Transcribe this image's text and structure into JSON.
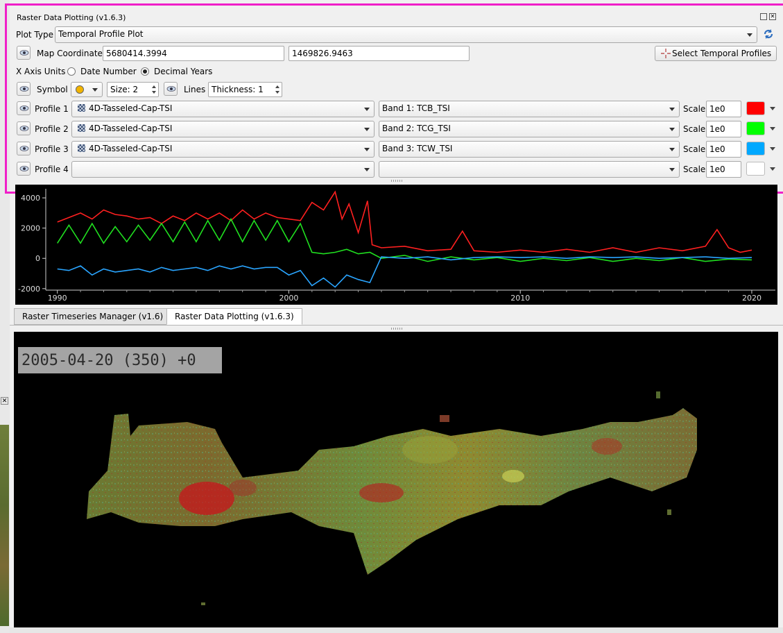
{
  "window": {
    "title": "Raster Data Plotting (v1.6.3)"
  },
  "plot_type": {
    "label": "Plot Type",
    "value": "Temporal Profile Plot"
  },
  "map_coordinate": {
    "label": "Map Coordinate",
    "x": "5680414.3994",
    "y": "1469826.9463",
    "select_button": "Select Temporal Profiles"
  },
  "x_axis_units": {
    "label": "X Axis Units",
    "options": [
      "Date Number",
      "Decimal Years"
    ],
    "selected": "Decimal Years"
  },
  "symbol": {
    "label": "Symbol",
    "size": "Size: 2",
    "lines_label": "Lines",
    "thickness": "Thickness: 1",
    "color": "#f2b400"
  },
  "profiles": [
    {
      "label": "Profile 1",
      "layer": "4D-Tasseled-Cap-TSI",
      "band": "Band 1: TCB_TSI",
      "scale_label": "Scale",
      "scale": "1e0",
      "color": "#ff0000"
    },
    {
      "label": "Profile 2",
      "layer": "4D-Tasseled-Cap-TSI",
      "band": "Band 2: TCG_TSI",
      "scale_label": "Scale",
      "scale": "1e0",
      "color": "#00ff00"
    },
    {
      "label": "Profile 3",
      "layer": "4D-Tasseled-Cap-TSI",
      "band": "Band 3: TCW_TSI",
      "scale_label": "Scale",
      "scale": "1e0",
      "color": "#00a8ff"
    },
    {
      "label": "Profile 4",
      "layer": "",
      "band": "",
      "scale_label": "Scale",
      "scale": "1e0",
      "color": "#ffffff"
    }
  ],
  "chart_data": {
    "type": "line",
    "title": "",
    "xlabel": "",
    "ylabel": "",
    "xlim": [
      1989.5,
      2020.9
    ],
    "ylim": [
      -2100,
      4600
    ],
    "x_ticks": [
      "1990",
      "2000",
      "2010",
      "2020"
    ],
    "y_ticks": [
      "4000",
      "2000",
      "0",
      "-2000"
    ],
    "grid": false,
    "background": "#000000",
    "series": [
      {
        "color": "#ff2020",
        "x": [
          1990,
          1990.5,
          1991,
          1991.5,
          1992,
          1992.5,
          1993,
          1993.5,
          1994,
          1994.5,
          1995,
          1995.5,
          1996,
          1996.5,
          1997,
          1997.5,
          1998,
          1998.5,
          1999,
          1999.5,
          2000,
          2000.5,
          2001,
          2001.5,
          2002,
          2002.3,
          2002.6,
          2003,
          2003.4,
          2003.6,
          2004,
          2005,
          2006,
          2007,
          2007.5,
          2008,
          2009,
          2010,
          2011,
          2012,
          2013,
          2014,
          2015,
          2016,
          2017,
          2018,
          2018.5,
          2019,
          2019.5,
          2020
        ],
        "y": [
          2400,
          2700,
          3000,
          2600,
          3200,
          2900,
          2800,
          2600,
          2700,
          2300,
          2800,
          2500,
          3000,
          2600,
          3000,
          2500,
          3200,
          2600,
          3000,
          2700,
          2600,
          2500,
          3700,
          3200,
          4400,
          2600,
          3600,
          1700,
          3800,
          900,
          700,
          800,
          500,
          600,
          1800,
          500,
          400,
          550,
          400,
          600,
          400,
          700,
          400,
          700,
          500,
          800,
          1900,
          700,
          400,
          550
        ]
      },
      {
        "color": "#20e020",
        "x": [
          1990,
          1990.5,
          1991,
          1991.5,
          1992,
          1992.5,
          1993,
          1993.5,
          1994,
          1994.5,
          1995,
          1995.5,
          1996,
          1996.5,
          1997,
          1997.5,
          1998,
          1998.5,
          1999,
          1999.5,
          2000,
          2000.5,
          2001,
          2001.5,
          2002,
          2002.5,
          2003,
          2003.5,
          2004,
          2005,
          2006,
          2007,
          2008,
          2009,
          2010,
          2011,
          2012,
          2013,
          2014,
          2015,
          2016,
          2017,
          2018,
          2019,
          2020
        ],
        "y": [
          1000,
          2200,
          1000,
          2300,
          1000,
          2100,
          1100,
          2200,
          1200,
          2300,
          1100,
          2400,
          1100,
          2500,
          1200,
          2600,
          1100,
          2500,
          1200,
          2500,
          1100,
          2300,
          400,
          300,
          400,
          600,
          300,
          400,
          0,
          200,
          -200,
          100,
          -100,
          50,
          -200,
          0,
          -150,
          50,
          -200,
          0,
          -150,
          50,
          -200,
          -50,
          -100
        ]
      },
      {
        "color": "#2aa5ff",
        "x": [
          1990,
          1990.5,
          1991,
          1991.5,
          1992,
          1992.5,
          1993,
          1993.5,
          1994,
          1994.5,
          1995,
          1995.5,
          1996,
          1996.5,
          1997,
          1997.5,
          1998,
          1998.5,
          1999,
          1999.5,
          2000,
          2000.5,
          2001,
          2001.5,
          2002,
          2002.5,
          2003,
          2003.5,
          2004,
          2005,
          2006,
          2007,
          2008,
          2009,
          2010,
          2011,
          2012,
          2013,
          2014,
          2015,
          2016,
          2017,
          2018,
          2019,
          2020
        ],
        "y": [
          -700,
          -800,
          -500,
          -1100,
          -700,
          -900,
          -800,
          -700,
          -900,
          -600,
          -800,
          -700,
          -600,
          -800,
          -500,
          -700,
          -500,
          -700,
          -600,
          -600,
          -1100,
          -800,
          -1800,
          -1300,
          -1900,
          -1100,
          -1400,
          -1600,
          100,
          0,
          100,
          -100,
          50,
          100,
          50,
          100,
          0,
          100,
          50,
          100,
          0,
          50,
          100,
          0,
          50
        ]
      }
    ]
  },
  "tabs": [
    {
      "label": "Raster Timeseries Manager (v1.6)"
    },
    {
      "label": "Raster Data Plotting (v1.6.3)"
    }
  ],
  "map": {
    "date_overlay": "2005-04-20 (350) +0"
  }
}
